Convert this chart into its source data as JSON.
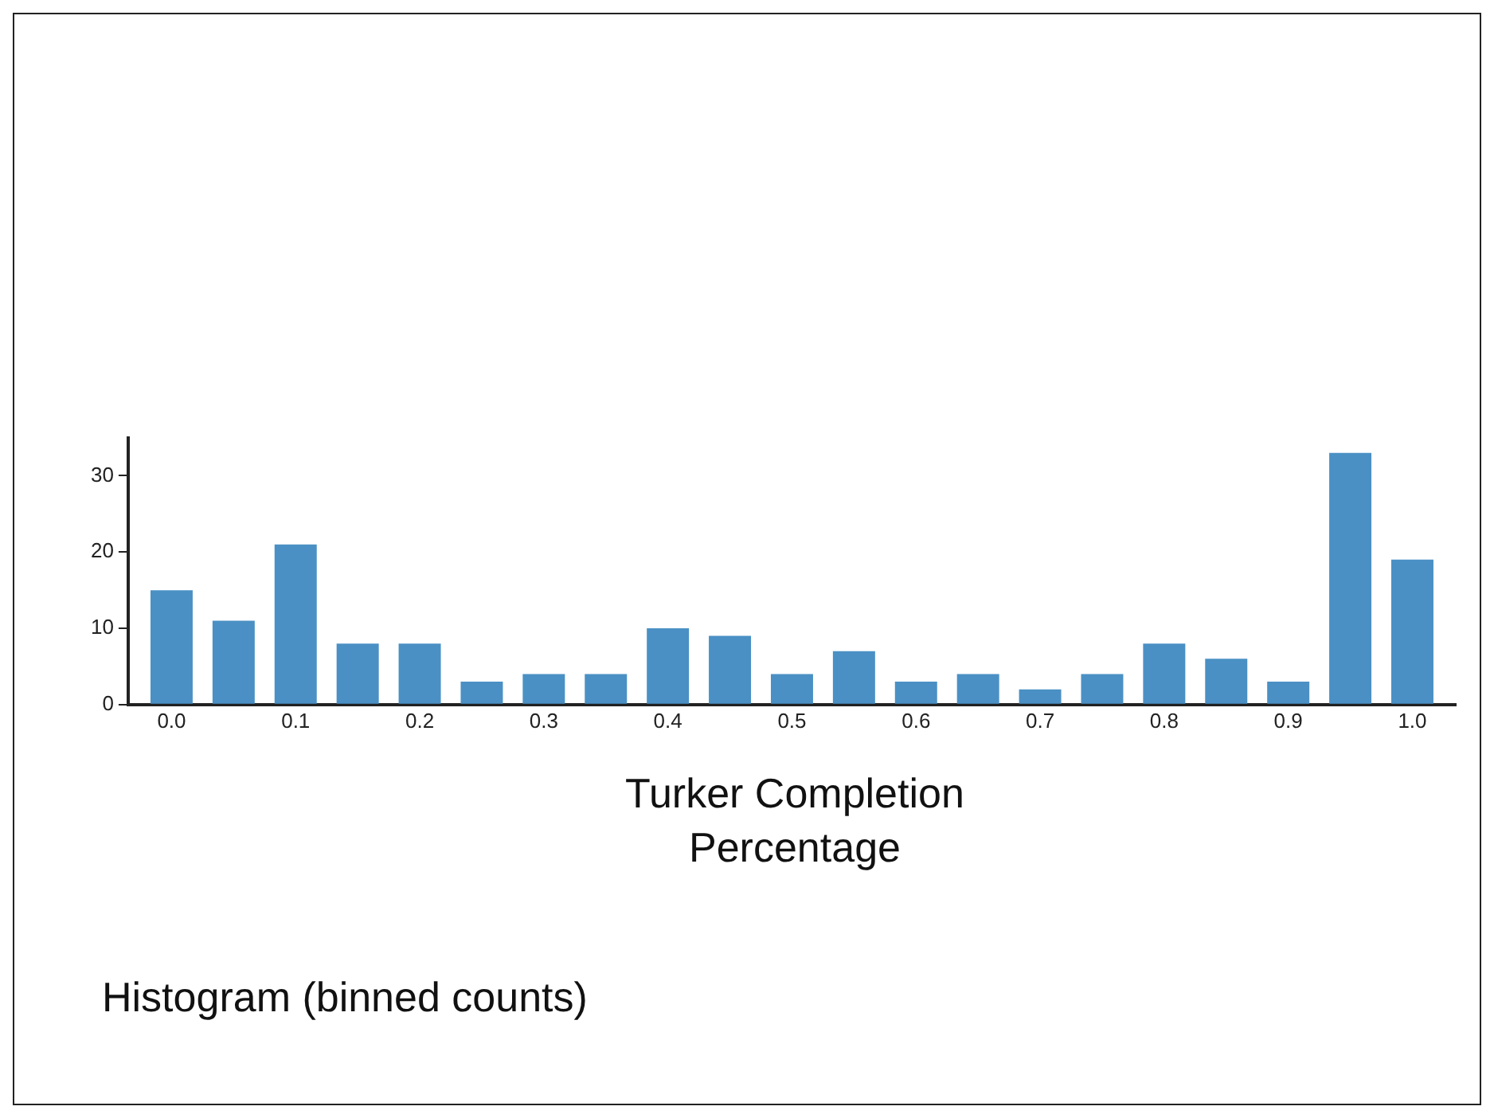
{
  "chart_data": {
    "type": "histogram",
    "bins": [
      -0.025,
      0.025,
      0.075,
      0.125,
      0.175,
      0.225,
      0.275,
      0.325,
      0.375,
      0.425,
      0.475,
      0.525,
      0.575,
      0.625,
      0.675,
      0.725,
      0.775,
      0.825,
      0.875,
      0.925,
      0.975,
      1.025
    ],
    "values": [
      15,
      11,
      21,
      8,
      8,
      3,
      4,
      4,
      10,
      9,
      4,
      7,
      3,
      4,
      2,
      4,
      8,
      6,
      3,
      33,
      19
    ],
    "color": "#4a90c4",
    "xlabel": "Turker Completion Percentage",
    "xlim": [
      -0.035,
      1.035
    ],
    "xticks": [
      {
        "value": 0,
        "label": "0.0"
      },
      {
        "value": 0.1,
        "label": "0.1"
      },
      {
        "value": 0.2,
        "label": "0.2"
      },
      {
        "value": 0.3,
        "label": "0.3"
      },
      {
        "value": 0.4,
        "label": "0.4"
      },
      {
        "value": 0.5,
        "label": "0.5"
      },
      {
        "value": 0.6,
        "label": "0.6"
      },
      {
        "value": 0.7,
        "label": "0.7"
      },
      {
        "value": 0.8,
        "label": "0.8"
      },
      {
        "value": 0.9,
        "label": "0.9"
      },
      {
        "value": 1,
        "label": "1.0"
      }
    ],
    "ylim": [
      0,
      35
    ],
    "yticks": [
      0,
      10,
      20,
      30
    ],
    "grid": false,
    "legend": false,
    "annotations": [
      "Histogram (binned counts)"
    ]
  }
}
